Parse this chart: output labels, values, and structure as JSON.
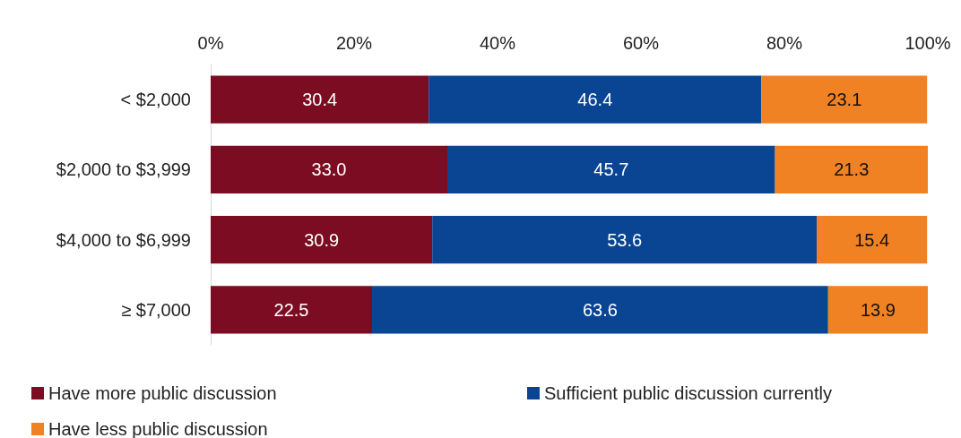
{
  "chart_data": {
    "type": "bar",
    "orientation": "horizontal",
    "stacked": true,
    "legend": "bottom left",
    "grid": false,
    "categories": [
      "< $2,000",
      "$2,000 to $3,999",
      "$4,000 to $6,999",
      "≥ $7,000"
    ],
    "xlim": [
      0,
      100
    ],
    "xticks": [
      {
        "value": 0,
        "label": "0%"
      },
      {
        "value": 20,
        "label": "20%"
      },
      {
        "value": 40,
        "label": "40%"
      },
      {
        "value": 60,
        "label": "60%"
      },
      {
        "value": 80,
        "label": "80%"
      },
      {
        "value": 100,
        "label": "100%"
      }
    ],
    "series": [
      {
        "name": "Have more public discussion",
        "color": "#7b0c21",
        "values": [
          30.4,
          33.0,
          30.9,
          22.5
        ],
        "value_labels": [
          "30.4",
          "33.0",
          "30.9",
          "22.5"
        ]
      },
      {
        "name": "Sufficient public discussion currently",
        "color": "#0a4594",
        "values": [
          46.4,
          45.7,
          53.6,
          63.6
        ],
        "value_labels": [
          "46.4",
          "45.7",
          "53.6",
          "63.6"
        ]
      },
      {
        "name": "Have less public discussion",
        "color": "#f08223",
        "values": [
          23.1,
          21.3,
          15.4,
          13.9
        ],
        "value_labels": [
          "23.1",
          "21.3",
          "15.4",
          "13.9"
        ]
      }
    ]
  }
}
